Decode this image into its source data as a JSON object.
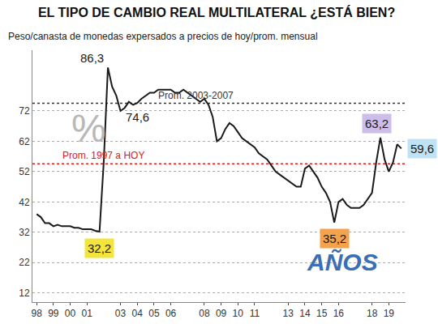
{
  "chart_data": {
    "type": "line",
    "title": "EL TIPO DE CAMBIO REAL MULTILATERAL ¿ESTÁ BIEN?",
    "subtitle": "Peso/canasta de monedas expersados a precios de hoy/prom. mensual",
    "categories": [
      "98",
      null,
      null,
      null,
      "99",
      null,
      null,
      null,
      "00",
      null,
      null,
      null,
      "01",
      null,
      null,
      null,
      null,
      null,
      null,
      null,
      "03",
      null,
      null,
      null,
      "04",
      null,
      null,
      null,
      "05",
      null,
      null,
      null,
      "06",
      null,
      null,
      null,
      null,
      null,
      null,
      null,
      "08",
      null,
      null,
      null,
      "09",
      null,
      null,
      null,
      "10",
      null,
      null,
      null,
      "11",
      null,
      null,
      null,
      null,
      null,
      null,
      null,
      "13",
      null,
      null,
      null,
      "14",
      null,
      null,
      null,
      "15",
      null,
      null,
      null,
      "16",
      null,
      null,
      null,
      null,
      null,
      null,
      null,
      "18",
      null,
      null,
      null,
      "19",
      null,
      null,
      null
    ],
    "values": [
      38,
      37,
      35,
      35,
      34,
      34.5,
      34,
      34,
      34,
      33.5,
      33.5,
      33,
      33,
      33,
      32.5,
      32.2,
      55,
      86.3,
      80,
      77,
      72,
      73,
      75,
      74,
      74.6,
      76,
      77,
      78,
      78,
      79,
      79,
      79,
      79,
      78,
      78,
      79,
      78,
      77,
      76,
      75,
      76,
      74,
      70,
      62,
      63,
      66,
      68,
      67,
      65,
      63,
      62,
      61,
      60,
      58,
      57,
      56,
      54,
      52,
      51,
      50,
      49,
      48,
      47,
      47,
      53,
      54,
      52,
      50,
      47,
      45,
      42,
      35.2,
      42,
      43,
      41,
      40,
      40,
      40,
      41,
      43,
      45,
      55,
      63.2,
      56,
      52,
      55,
      61,
      59.6
    ],
    "color": "#1a1a1a",
    "ylim": [
      9,
      92
    ],
    "yticks": [
      12,
      22,
      32,
      42,
      52,
      62,
      72
    ],
    "grid": true,
    "reference_lines": [
      {
        "label": "Prom. 2003-2007",
        "value": 74.5,
        "color": "#333333",
        "line_style": "dotted"
      },
      {
        "label": "Prom. 1997 a HOY",
        "value": 54.6,
        "color": "#d62020",
        "line_style": "dotted"
      }
    ],
    "point_labels": [
      {
        "index": 17,
        "label": "86,3"
      },
      {
        "index": 24,
        "label": "74,6"
      },
      {
        "index": 15,
        "label": "32,2",
        "color": "#f3e53c"
      },
      {
        "index": 71,
        "label": "35,2",
        "color": "#f4a24c"
      },
      {
        "index": 82,
        "label": "63,2",
        "color": "#cdbdeb"
      },
      {
        "index": 87,
        "label": "59,6",
        "color": "#bfe3f5"
      }
    ],
    "annotations": [
      "%",
      "AÑOS"
    ]
  }
}
